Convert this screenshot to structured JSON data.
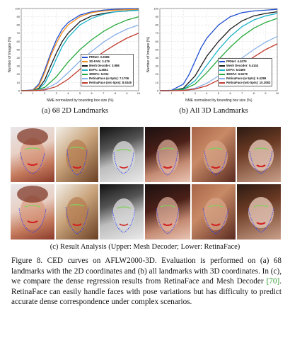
{
  "charts": [
    {
      "subcaption": "(a) 68 2D Landmarks",
      "ylabel": "Number of Images (%)",
      "xlabel": "NME normalized by bounding box size (%)",
      "legend": [
        {
          "label": "PRNet: 3.2699",
          "color": "#1f4fd0"
        },
        {
          "label": "3D-FAN: 3.479",
          "color": "#f28a1b"
        },
        {
          "label": "Mesh Decoder: 3.986",
          "color": "#1a1a1a"
        },
        {
          "label": "DeFA: 4.3651",
          "color": "#19b2c9"
        },
        {
          "label": "3DDFA: 6.034",
          "color": "#26a83b"
        },
        {
          "label": "RetinaFace (w 5pts): 7.1706",
          "color": "#8ab0e8"
        },
        {
          "label": "RetinaFace (w/o 5pts): 8.5349",
          "color": "#c0392b"
        }
      ]
    },
    {
      "subcaption": "(b) All 3D Landmarks",
      "ylabel": "Number of Images (%)",
      "xlabel": "NME normalized by bounding box size (%)",
      "legend": [
        {
          "label": "PRNet: 4.4079",
          "color": "#1f4fd0"
        },
        {
          "label": "Mesh Decoder: 5.4144",
          "color": "#1a1a1a"
        },
        {
          "label": "DeFA: 6.0469",
          "color": "#19b2c9"
        },
        {
          "label": "3DDFA: 6.5579",
          "color": "#26a83b"
        },
        {
          "label": "RetinaFace (w 5pts): 9.4289",
          "color": "#8ab0e8"
        },
        {
          "label": "RetinaFace (w/o 5pts): 10.2083",
          "color": "#c0392b"
        }
      ]
    }
  ],
  "chart_data": [
    {
      "type": "line",
      "xlabel": "NME normalized by bounding box size (%)",
      "ylabel": "Number of Images (%)",
      "xlim": [
        0,
        10
      ],
      "ylim": [
        0,
        100
      ],
      "x_ticks": [
        "0",
        "1",
        "2",
        "3",
        "4",
        "5",
        "6",
        "7",
        "8",
        "9",
        "10"
      ],
      "y_ticks": [
        "0",
        "10",
        "20",
        "30",
        "40",
        "50",
        "60",
        "70",
        "80",
        "90",
        "100"
      ],
      "grid": true,
      "legend_position": "lower-right",
      "series": [
        {
          "name": "PRNet: 3.2699",
          "color": "#1f4fd0",
          "x": [
            0,
            1,
            1.5,
            2,
            2.5,
            3,
            3.5,
            4,
            5,
            6,
            7,
            8,
            10
          ],
          "y": [
            0,
            1,
            8,
            25,
            45,
            62,
            75,
            83,
            92,
            96,
            98,
            99,
            100
          ]
        },
        {
          "name": "3D-FAN: 3.479",
          "color": "#f28a1b",
          "x": [
            0,
            1,
            1.5,
            2,
            2.5,
            3,
            3.5,
            4,
            5,
            6,
            7,
            8,
            10
          ],
          "y": [
            0,
            0.5,
            6,
            22,
            42,
            58,
            71,
            80,
            90,
            95,
            97,
            98,
            99
          ]
        },
        {
          "name": "Mesh Decoder: 3.986",
          "color": "#1a1a1a",
          "x": [
            0,
            1,
            1.5,
            2,
            2.5,
            3,
            3.5,
            4,
            5,
            6,
            7,
            8,
            10
          ],
          "y": [
            0,
            0.2,
            3,
            13,
            30,
            46,
            60,
            70,
            84,
            91,
            94,
            96,
            98
          ]
        },
        {
          "name": "DeFA: 4.3651",
          "color": "#19b2c9",
          "x": [
            0,
            1,
            1.5,
            2,
            2.5,
            3,
            3.5,
            4,
            5,
            6,
            7,
            8,
            10
          ],
          "y": [
            0,
            0.1,
            2,
            9,
            23,
            39,
            54,
            65,
            80,
            88,
            93,
            96,
            98
          ]
        },
        {
          "name": "3DDFA: 6.034",
          "color": "#26a83b",
          "x": [
            0,
            1,
            2,
            3,
            4,
            5,
            6,
            7,
            8,
            9,
            10
          ],
          "y": [
            0,
            0.1,
            4,
            17,
            35,
            50,
            62,
            72,
            80,
            86,
            90
          ]
        },
        {
          "name": "RetinaFace (w 5pts): 7.1706",
          "color": "#8ab0e8",
          "x": [
            0,
            1,
            2,
            3,
            4,
            5,
            6,
            7,
            8,
            9,
            10
          ],
          "y": [
            0,
            0,
            2,
            9,
            22,
            36,
            48,
            59,
            68,
            75,
            80
          ]
        },
        {
          "name": "RetinaFace (w/o 5pts): 8.5349",
          "color": "#c0392b",
          "x": [
            0,
            1,
            2,
            3,
            4,
            5,
            6,
            7,
            8,
            9,
            10
          ],
          "y": [
            0,
            0,
            1,
            5,
            14,
            26,
            37,
            47,
            56,
            64,
            70
          ]
        }
      ]
    },
    {
      "type": "line",
      "xlabel": "NME normalized by bounding box size (%)",
      "ylabel": "Number of Images (%)",
      "xlim": [
        0,
        10
      ],
      "ylim": [
        0,
        100
      ],
      "x_ticks": [
        "0",
        "1",
        "2",
        "3",
        "4",
        "5",
        "6",
        "7",
        "8",
        "9",
        "10"
      ],
      "y_ticks": [
        "0",
        "10",
        "20",
        "30",
        "40",
        "50",
        "60",
        "70",
        "80",
        "90",
        "100"
      ],
      "grid": true,
      "legend_position": "lower-right",
      "series": [
        {
          "name": "PRNet: 4.4079",
          "color": "#1f4fd0",
          "x": [
            0,
            1,
            2,
            2.5,
            3,
            3.5,
            4,
            5,
            6,
            7,
            8,
            10
          ],
          "y": [
            0,
            0.5,
            8,
            20,
            36,
            52,
            64,
            80,
            90,
            95,
            97,
            99
          ]
        },
        {
          "name": "Mesh Decoder: 5.4144",
          "color": "#1a1a1a",
          "x": [
            0,
            1,
            2,
            3,
            3.5,
            4,
            5,
            6,
            7,
            8,
            9,
            10
          ],
          "y": [
            0,
            0.1,
            3,
            18,
            30,
            42,
            60,
            75,
            85,
            91,
            94,
            96
          ]
        },
        {
          "name": "DeFA: 6.0469",
          "color": "#19b2c9",
          "x": [
            0,
            1,
            2,
            3,
            4,
            5,
            6,
            7,
            8,
            9,
            10
          ],
          "y": [
            0,
            0.1,
            2,
            12,
            31,
            50,
            66,
            78,
            86,
            91,
            94
          ]
        },
        {
          "name": "3DDFA: 6.5579",
          "color": "#26a83b",
          "x": [
            0,
            1,
            2,
            3,
            4,
            5,
            6,
            7,
            8,
            9,
            10
          ],
          "y": [
            0,
            0.1,
            1.5,
            8,
            22,
            38,
            53,
            66,
            76,
            83,
            88
          ]
        },
        {
          "name": "RetinaFace (w 5pts): 9.4289",
          "color": "#8ab0e8",
          "x": [
            0,
            1,
            2,
            3,
            4,
            5,
            6,
            7,
            8,
            9,
            10
          ],
          "y": [
            0,
            0,
            0.5,
            3,
            9,
            18,
            29,
            40,
            50,
            59,
            66
          ]
        },
        {
          "name": "RetinaFace (w/o 5pts): 10.2083",
          "color": "#c0392b",
          "x": [
            0,
            1,
            2,
            3,
            4,
            5,
            6,
            7,
            8,
            9,
            10
          ],
          "y": [
            0,
            0,
            0.3,
            2,
            6,
            13,
            22,
            32,
            41,
            50,
            57
          ]
        }
      ]
    }
  ],
  "faces_caption": "(c) Result Analysis (Upper: Mesh Decoder; Lower: RetinaFace)",
  "figure_caption": {
    "part1": "Figure 8. CED curves on AFLW2000-3D. Evaluation is performed on (a) 68 landmarks with the 2D coordinates and (b) all landmarks with 3D coordinates. In (c), we compare the dense regression results from RetinaFace and Mesh Decoder ",
    "ref": "[70]",
    "part2": ". RetinaFace can easily handle faces with pose variations but has difficulty to predict accurate dense correspondence under complex scenarios."
  }
}
